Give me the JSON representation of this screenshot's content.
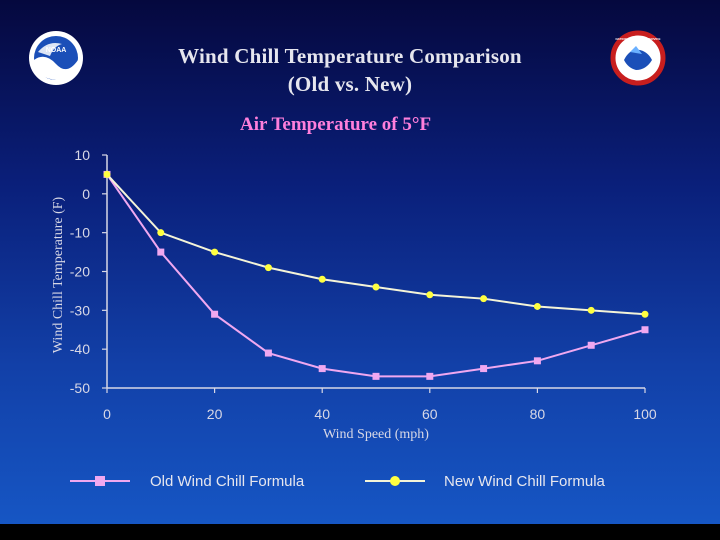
{
  "header": {
    "title_line1": "Wind Chill Temperature Comparison",
    "title_line2": "(Old vs. New)",
    "logo_left": "NOAA",
    "logo_right": "NATIONAL WEATHER SERVICE"
  },
  "colors": {
    "old_series": "#f0a8f0",
    "new_series": "#ffff40",
    "line_new": "#f4f4d8",
    "axis": "#d8d8e6"
  },
  "chart_data": {
    "type": "line",
    "title": "Air Temperature of 5°F",
    "xlabel": "Wind Speed (mph)",
    "ylabel": "Wind Chill Temperature (F)",
    "xlim": [
      0,
      100
    ],
    "ylim": [
      -50,
      10
    ],
    "xticks": [
      0,
      20,
      40,
      60,
      80,
      100
    ],
    "yticks": [
      10,
      0,
      -10,
      -20,
      -30,
      -40,
      -50
    ],
    "grid": false,
    "legend_position": "bottom",
    "x": [
      0,
      10,
      20,
      30,
      40,
      50,
      60,
      70,
      80,
      90,
      100
    ],
    "series": [
      {
        "name": "Old Wind Chill Formula",
        "marker": "square",
        "values": [
          5,
          -15,
          -31,
          -41,
          -45,
          -47,
          -47,
          -45,
          -43,
          -39,
          -35
        ]
      },
      {
        "name": "New Wind Chill Formula",
        "marker": "circle",
        "values": [
          5,
          -10,
          -15,
          -19,
          -22,
          -24,
          -26,
          -27,
          -29,
          -30,
          -31
        ]
      }
    ]
  }
}
